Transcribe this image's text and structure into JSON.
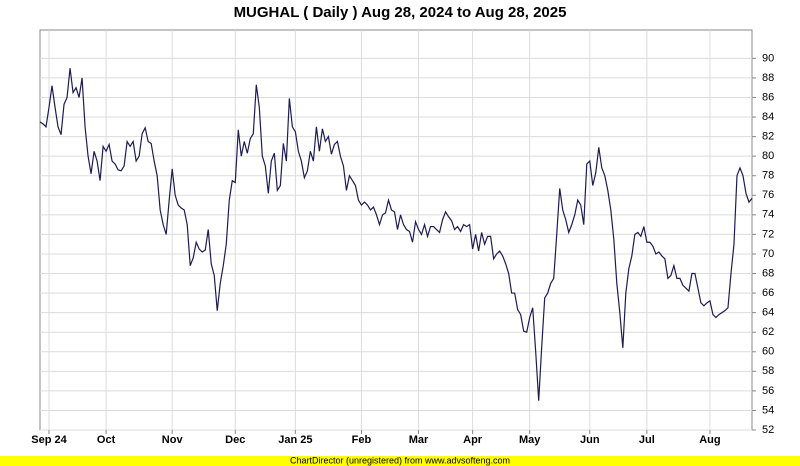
{
  "chart_data": {
    "type": "line",
    "title": "MUGHAL ( Daily ) Aug 28, 2024 to Aug 28, 2025",
    "footer": "ChartDirector (unregistered) from www.advsofteng.com",
    "series": [
      {
        "color": "#1c1c50",
        "values": [
          83.5,
          83.3,
          83.0,
          85,
          87.2,
          85,
          83,
          82.2,
          85.3,
          86,
          89,
          86.5,
          87,
          86,
          88,
          83,
          80,
          78.2,
          80.5,
          79.5,
          77.5,
          81,
          80.5,
          81.2,
          79.5,
          79.2,
          78.6,
          78.5,
          79,
          81.5,
          81,
          81.5,
          79.5,
          80,
          82.3,
          82.9,
          81.5,
          81.3,
          79.5,
          78,
          74.5,
          73,
          72,
          75.5,
          78.7,
          76,
          75,
          74.7,
          74.5,
          73,
          68.8,
          69.6,
          71.2,
          70.5,
          70.2,
          70.4,
          72.5,
          69,
          67.8,
          64.2,
          67,
          68.8,
          71,
          75.5,
          77.5,
          77.3,
          82.7,
          80,
          81.5,
          80.3,
          81.8,
          82.3,
          87.3,
          85,
          80,
          79,
          76.2,
          79.5,
          80.3,
          76.5,
          77,
          81.3,
          79.5,
          85.9,
          83,
          82.5,
          80.5,
          79.5,
          77.8,
          78.5,
          80.5,
          79.5,
          83,
          80.5,
          82.8,
          81.5,
          82,
          80.2,
          81.2,
          81.5,
          80,
          79,
          76.5,
          78,
          77.5,
          77,
          75.5,
          75,
          75.3,
          75,
          74.5,
          74.8,
          74,
          73,
          74,
          74.2,
          75.5,
          74.5,
          74.3,
          72.5,
          74,
          73,
          72.5,
          72.3,
          71.2,
          73.3,
          72.5,
          72,
          73,
          71.8,
          72.8,
          72.8,
          72.5,
          72.2,
          73.5,
          74.3,
          73.8,
          73.4,
          72.5,
          72.8,
          72.3,
          73,
          72.8,
          73,
          70.5,
          72,
          70.3,
          72.2,
          71,
          71.8,
          71.8,
          69.5,
          70,
          70.3,
          69.8,
          69,
          68,
          66,
          66,
          64.3,
          63.8,
          62.1,
          62,
          63.5,
          64.5,
          60,
          55,
          60.5,
          65.5,
          66,
          67,
          67.5,
          72,
          76.7,
          74.5,
          73.5,
          72.2,
          73,
          74,
          75.5,
          75,
          73,
          79.2,
          79.5,
          77,
          78.3,
          80.9,
          78.8,
          78,
          76.5,
          74.5,
          71.5,
          67,
          64,
          60.4,
          66,
          68.5,
          69.8,
          72,
          72.2,
          71.8,
          72.8,
          71.2,
          71.2,
          70.8,
          70,
          70.2,
          69.8,
          69.5,
          67.5,
          67.8,
          68.8,
          67.5,
          67.5,
          66.8,
          66.5,
          66.2,
          68,
          68,
          66.5,
          65,
          64.7,
          65,
          65.2,
          63.8,
          63.5,
          63.8,
          64,
          64.2,
          64.5,
          68,
          71,
          78,
          78.8,
          78,
          76.2,
          75.3,
          75.7
        ]
      }
    ],
    "xlim": [
      0,
      237
    ],
    "xticks": [
      {
        "value": 3,
        "label": "Sep 24"
      },
      {
        "value": 22,
        "label": "Oct"
      },
      {
        "value": 44,
        "label": "Nov"
      },
      {
        "value": 65,
        "label": "Dec"
      },
      {
        "value": 85,
        "label": "Jan 25"
      },
      {
        "value": 107,
        "label": "Feb"
      },
      {
        "value": 126,
        "label": "Mar"
      },
      {
        "value": 144,
        "label": "Apr"
      },
      {
        "value": 163,
        "label": "May"
      },
      {
        "value": 183,
        "label": "Jun"
      },
      {
        "value": 202,
        "label": "Jul"
      },
      {
        "value": 223,
        "label": "Aug"
      }
    ],
    "ylim": [
      52,
      92.9
    ],
    "yticks": [
      52,
      54,
      56,
      58,
      60,
      62,
      64,
      66,
      68,
      70,
      72,
      74,
      76,
      78,
      80,
      82,
      84,
      86,
      88,
      90
    ],
    "grid": true
  }
}
